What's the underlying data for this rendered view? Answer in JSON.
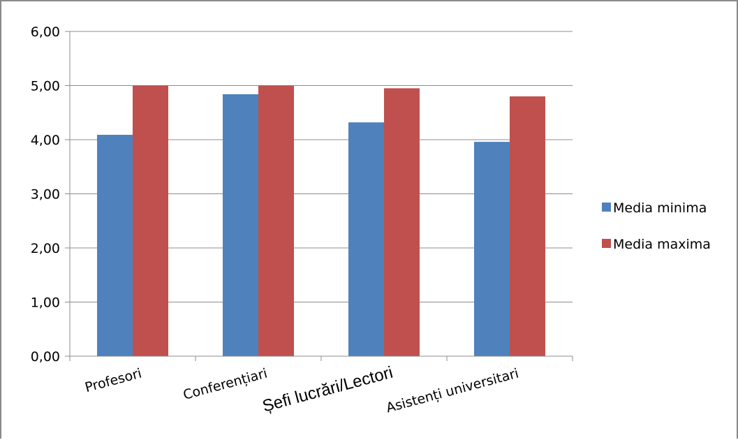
{
  "chart_data": {
    "type": "bar",
    "title": "",
    "xlabel": "",
    "ylabel": "",
    "categories": [
      "Profesori",
      "Conferențiari",
      "Șefi lucrări/Lectori",
      "Asistenți universitari"
    ],
    "series": [
      {
        "name": "Media minima",
        "color": "#4f81bd",
        "values": [
          4.09,
          4.84,
          4.32,
          3.96
        ]
      },
      {
        "name": "Media maxima",
        "color": "#c0504d",
        "values": [
          5.0,
          5.0,
          4.95,
          4.8
        ]
      }
    ],
    "ylim": [
      0,
      6
    ],
    "yticks": [
      "0,00",
      "1,00",
      "2,00",
      "3,00",
      "4,00",
      "5,00",
      "6,00"
    ],
    "grid": true,
    "legend_position": "right"
  }
}
